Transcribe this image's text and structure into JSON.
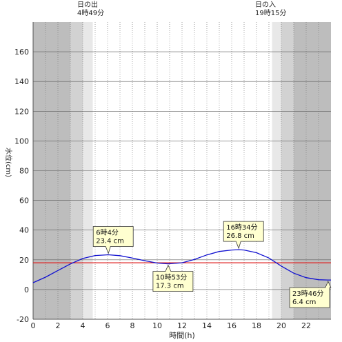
{
  "sunrise": {
    "label": "日の出",
    "time": "4時49分",
    "hour": 4.817
  },
  "sunset": {
    "label": "日の入",
    "time": "19時15分",
    "hour": 19.25
  },
  "colors": {
    "curve": "#1010d0",
    "reference_line": "#e02020",
    "night": "#bdbdbd",
    "twilight_dark": "#d2d2d2",
    "twilight_light": "#e8e8e8",
    "day": "#ffffff",
    "callout_bg": "#ffffd0"
  },
  "chart_data": {
    "type": "line",
    "xlabel": "時間(h)",
    "ylabel": "水位(cm)",
    "xlim": [
      0,
      24
    ],
    "ylim": [
      -20,
      180
    ],
    "xticks": [
      0,
      2,
      4,
      6,
      8,
      10,
      12,
      14,
      16,
      18,
      20,
      22
    ],
    "yticks": [
      -20,
      0,
      20,
      40,
      60,
      80,
      100,
      120,
      140,
      160
    ],
    "reference_line": 18,
    "series": [
      {
        "x": [
          0,
          1,
          2,
          3,
          4,
          5,
          6.067,
          7,
          8,
          9,
          10,
          10.883,
          12,
          13,
          14,
          15,
          16,
          16.567,
          17,
          18,
          19,
          20,
          21,
          22,
          23,
          23.767
        ],
        "y": [
          4.6,
          8.3,
          12.8,
          17.2,
          20.9,
          22.9,
          23.4,
          22.8,
          21.2,
          19.4,
          17.8,
          17.3,
          18.0,
          20.3,
          23.3,
          25.6,
          26.6,
          26.8,
          26.6,
          24.8,
          21.2,
          15.8,
          11.0,
          8.0,
          6.6,
          6.4
        ]
      }
    ],
    "annotations": [
      {
        "kind": "high",
        "time": "6時4分",
        "level": "23.4 cm",
        "x": 6.067,
        "y": 23.4
      },
      {
        "kind": "low",
        "time": "10時53分",
        "level": "17.3 cm",
        "x": 10.883,
        "y": 17.3
      },
      {
        "kind": "high",
        "time": "16時34分",
        "level": "26.8 cm",
        "x": 16.567,
        "y": 26.8
      },
      {
        "kind": "low",
        "time": "23時46分",
        "level": "6.4 cm",
        "x": 23.767,
        "y": 6.4
      }
    ]
  }
}
